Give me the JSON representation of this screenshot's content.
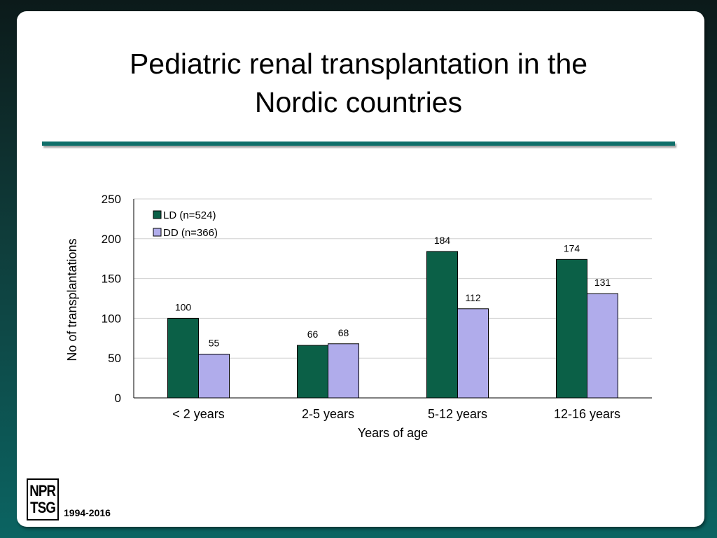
{
  "slide": {
    "title_lines": [
      "Pediatric renal transplantation in the",
      "Nordic countries"
    ],
    "logo_lines": [
      "NPR",
      "TSG"
    ],
    "years_range": "1994-2016",
    "accent_color": "#0f6f6a"
  },
  "chart_data": {
    "type": "bar",
    "title": "",
    "xlabel": "Years of age",
    "ylabel": "No of transplantations",
    "categories": [
      "< 2 years",
      "2-5 years",
      "5-12 years",
      "12-16 years"
    ],
    "ylim": [
      0,
      250
    ],
    "yticks": [
      0,
      50,
      100,
      150,
      200,
      250
    ],
    "grid": true,
    "legend_position": "top-left",
    "series": [
      {
        "name": "LD (n=524)",
        "values": [
          100,
          66,
          184,
          174
        ],
        "color": "#0b6047"
      },
      {
        "name": "DD (n=366)",
        "values": [
          55,
          68,
          112,
          131
        ],
        "color": "#b0aceb"
      }
    ]
  }
}
